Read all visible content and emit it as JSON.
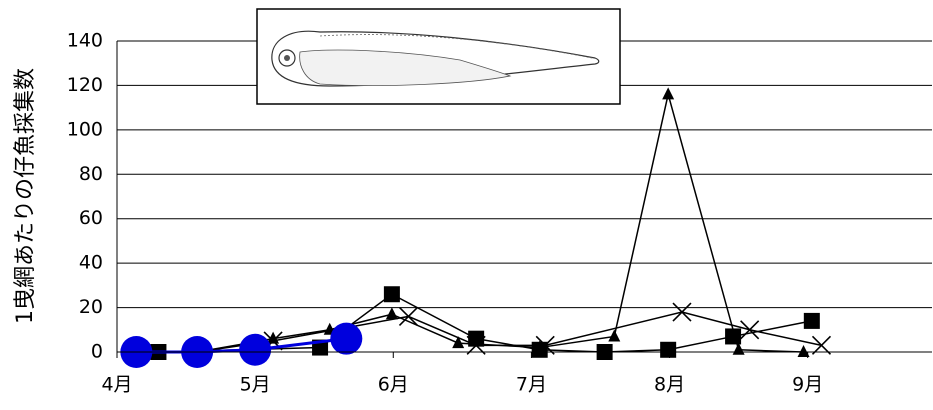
{
  "chart_data": {
    "type": "line",
    "y_label": "1曳網あたりの仔魚採集数",
    "xlim": [
      4,
      9.9
    ],
    "xticks": [
      {
        "value": 4,
        "label": "4月"
      },
      {
        "value": 5,
        "label": "5月"
      },
      {
        "value": 6,
        "label": "6月"
      },
      {
        "value": 7,
        "label": "7月"
      },
      {
        "value": 8,
        "label": "8月"
      },
      {
        "value": 9,
        "label": "9月"
      }
    ],
    "ylim": [
      0,
      140
    ],
    "yticks": [
      0,
      20,
      40,
      60,
      80,
      100,
      120,
      140
    ],
    "grid": true,
    "series": [
      {
        "color": "#000000",
        "marker": "square",
        "x": [
          4.3,
          5.47,
          5.99,
          6.6,
          7.06,
          7.53,
          7.99,
          8.46,
          9.03
        ],
        "values": [
          0,
          2,
          26,
          6,
          1,
          0,
          1,
          7,
          14
        ]
      },
      {
        "color": "#000000",
        "marker": "triangle",
        "x": [
          4.58,
          5.13,
          5.54,
          5.99,
          6.47,
          7.06,
          7.6,
          7.99,
          8.5,
          8.97
        ],
        "values": [
          0,
          6,
          10,
          17,
          4,
          2,
          7,
          116,
          1,
          0
        ]
      },
      {
        "color": "#000000",
        "marker": "cross",
        "x": [
          4.58,
          5.13,
          6.11,
          6.6,
          7.1,
          8.09,
          8.58,
          9.1
        ],
        "values": [
          0,
          5,
          16,
          3,
          3,
          18,
          10,
          3
        ]
      },
      {
        "color": "#0000dd",
        "marker": "circle",
        "x": [
          4.14,
          4.58,
          5.0,
          5.66
        ],
        "values": [
          0,
          0,
          1,
          6
        ]
      }
    ]
  }
}
